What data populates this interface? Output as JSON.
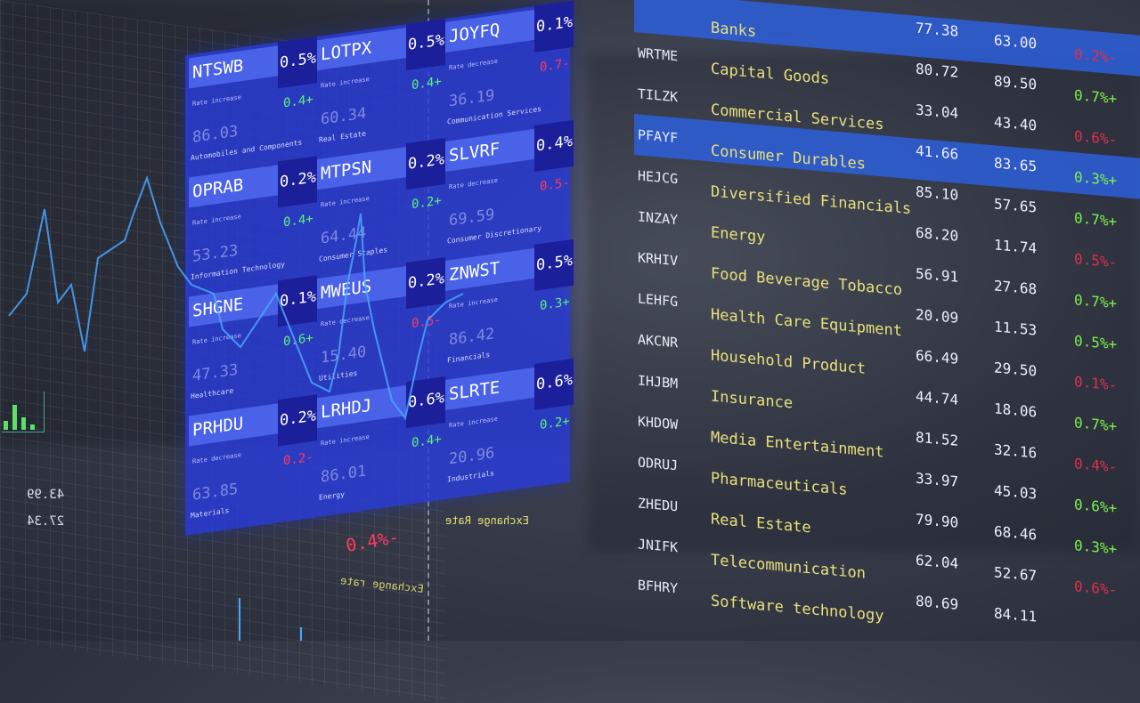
{
  "tiles": [
    {
      "ticker": "NTSWB",
      "pct": "0.5%",
      "label": "Rate increase",
      "change": "0.4+",
      "dir": "up",
      "value": "86.03",
      "sector": "Automobiles and Components"
    },
    {
      "ticker": "LOTPX",
      "pct": "0.5%",
      "label": "Rate increase",
      "change": "0.4+",
      "dir": "up",
      "value": "60.34",
      "sector": "Real Estate"
    },
    {
      "ticker": "JOYFQ",
      "pct": "0.1%",
      "label": "Rate decrease",
      "change": "0.7-",
      "dir": "dn",
      "value": "36.19",
      "sector": "Communication Services"
    },
    {
      "ticker": "OPRAB",
      "pct": "0.2%",
      "label": "Rate increase",
      "change": "0.4+",
      "dir": "up",
      "value": "53.23",
      "sector": "Information Technology"
    },
    {
      "ticker": "MTPSN",
      "pct": "0.2%",
      "label": "Rate increase",
      "change": "0.2+",
      "dir": "up",
      "value": "64.44",
      "sector": "Consumer Staples"
    },
    {
      "ticker": "SLVRF",
      "pct": "0.4%",
      "label": "Rate decrease",
      "change": "0.5-",
      "dir": "dn",
      "value": "69.59",
      "sector": "Consumer Discretionary"
    },
    {
      "ticker": "SHGNE",
      "pct": "0.1%",
      "label": "Rate increase",
      "change": "0.6+",
      "dir": "up",
      "value": "47.33",
      "sector": "Healthcare"
    },
    {
      "ticker": "MWEUS",
      "pct": "0.2%",
      "label": "Rate decrease",
      "change": "0.5-",
      "dir": "dn",
      "value": "15.40",
      "sector": "Utilities"
    },
    {
      "ticker": "ZNWST",
      "pct": "0.5%",
      "label": "Rate increase",
      "change": "0.3+",
      "dir": "up",
      "value": "86.42",
      "sector": "Financials"
    },
    {
      "ticker": "PRHDU",
      "pct": "0.2%",
      "label": "Rate decrease",
      "change": "0.2-",
      "dir": "dn",
      "value": "63.85",
      "sector": "Materials"
    },
    {
      "ticker": "LRHDJ",
      "pct": "0.6%",
      "label": "Rate increase",
      "change": "0.4+",
      "dir": "up",
      "value": "86.01",
      "sector": "Energy"
    },
    {
      "ticker": "SLRTE",
      "pct": "0.6%",
      "label": "Rate increase",
      "change": "0.2+",
      "dir": "up",
      "value": "20.96",
      "sector": "Industrials"
    }
  ],
  "overlay": {
    "exchange_rate_mirrored": "Exchange Rate",
    "floating_change": "0.4%-",
    "left_values": [
      "43.99",
      "27.34"
    ],
    "exchange_rate_bottom": "Exchange rate"
  },
  "table": [
    {
      "ticker": "",
      "sector": "Banks",
      "a": "77.38",
      "b": "63.00",
      "c": "0.2%-",
      "dir": "dn",
      "hl": true
    },
    {
      "ticker": "WRTME",
      "sector": "Capital Goods",
      "a": "80.72",
      "b": "89.50",
      "c": "0.7%+",
      "dir": "up"
    },
    {
      "ticker": "TILZK",
      "sector": "Commercial Services",
      "a": "33.04",
      "b": "43.40",
      "c": "0.6%-",
      "dir": "dn"
    },
    {
      "ticker": "PFAYF",
      "sector": "Consumer Durables",
      "a": "41.66",
      "b": "83.65",
      "c": "0.3%+",
      "dir": "up",
      "hl": true
    },
    {
      "ticker": "HEJCG",
      "sector": "Diversified Financials",
      "a": "85.10",
      "b": "57.65",
      "c": "0.7%+",
      "dir": "up"
    },
    {
      "ticker": "INZAY",
      "sector": "Energy",
      "a": "68.20",
      "b": "11.74",
      "c": "0.5%-",
      "dir": "dn"
    },
    {
      "ticker": "KRHIV",
      "sector": "Food Beverage Tobacco",
      "a": "56.91",
      "b": "27.68",
      "c": "0.7%+",
      "dir": "up"
    },
    {
      "ticker": "LEHFG",
      "sector": "Health Care Equipment",
      "a": "20.09",
      "b": "11.53",
      "c": "0.5%+",
      "dir": "up"
    },
    {
      "ticker": "AKCNR",
      "sector": "Household Product",
      "a": "66.49",
      "b": "29.50",
      "c": "0.1%-",
      "dir": "dn"
    },
    {
      "ticker": "IHJBM",
      "sector": "Insurance",
      "a": "44.74",
      "b": "18.06",
      "c": "0.7%+",
      "dir": "up"
    },
    {
      "ticker": "KHDOW",
      "sector": "Media Entertainment",
      "a": "81.52",
      "b": "32.16",
      "c": "0.4%-",
      "dir": "dn"
    },
    {
      "ticker": "ODRUJ",
      "sector": "Pharmaceuticals",
      "a": "33.97",
      "b": "45.03",
      "c": "0.6%+",
      "dir": "up"
    },
    {
      "ticker": "ZHEDU",
      "sector": "Real Estate",
      "a": "79.90",
      "b": "68.46",
      "c": "0.3%+",
      "dir": "up"
    },
    {
      "ticker": "JNIFK",
      "sector": "Telecommunication",
      "a": "62.04",
      "b": "52.67",
      "c": "0.6%-",
      "dir": "dn"
    },
    {
      "ticker": "BFHRY",
      "sector": "Software technology",
      "a": "80.69",
      "b": "84.11",
      "c": "",
      "dir": "up"
    }
  ],
  "colors": {
    "panel": "#2c3fd8",
    "up": "#5cf27a",
    "down": "#ff3a5a",
    "sector": "#e8e07a"
  }
}
